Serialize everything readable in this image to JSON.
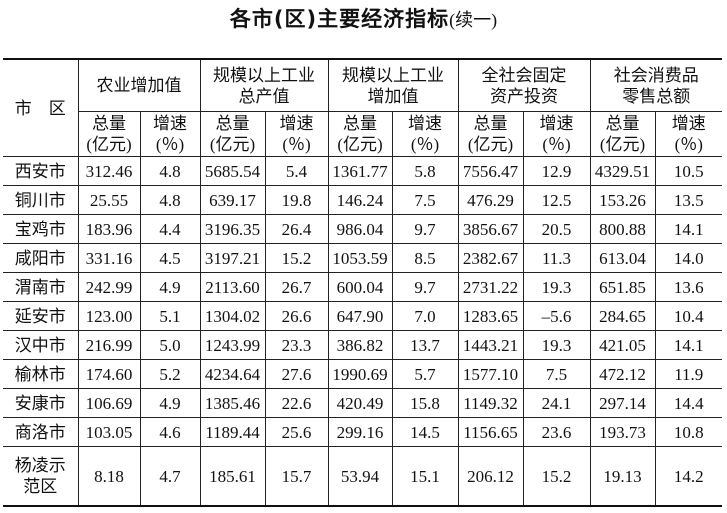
{
  "title": {
    "main": "各市(区)主要经济指标",
    "suffix": "(续一)"
  },
  "table": {
    "corner": "市　区",
    "groups": [
      [
        "农业增加值"
      ],
      [
        "规模以上工业",
        "总产值"
      ],
      [
        "规模以上工业",
        "增加值"
      ],
      [
        "全社会固定",
        "资产投资"
      ],
      [
        "社会消费品",
        "零售总额"
      ]
    ],
    "subheaders": [
      [
        "总量",
        "(亿元)"
      ],
      [
        "增速",
        "(％)"
      ],
      [
        "总量",
        "(亿元)"
      ],
      [
        "增速",
        "(％)"
      ],
      [
        "总量",
        "(亿元)"
      ],
      [
        "增速",
        "(％)"
      ],
      [
        "总量",
        "(亿元)"
      ],
      [
        "增速",
        "(％)"
      ],
      [
        "总量",
        "(亿元)"
      ],
      [
        "增速",
        "(％)"
      ]
    ],
    "rows": [
      {
        "name": [
          "西安市"
        ],
        "cells": [
          "312.46",
          "4.8",
          "5685.54",
          "5.4",
          "1361.77",
          "5.8",
          "7556.47",
          "12.9",
          "4329.51",
          "10.5"
        ]
      },
      {
        "name": [
          "铜川市"
        ],
        "cells": [
          "25.55",
          "4.8",
          "639.17",
          "19.8",
          "146.24",
          "7.5",
          "476.29",
          "12.5",
          "153.26",
          "13.5"
        ]
      },
      {
        "name": [
          "宝鸡市"
        ],
        "cells": [
          "183.96",
          "4.4",
          "3196.35",
          "26.4",
          "986.04",
          "9.7",
          "3856.67",
          "20.5",
          "800.88",
          "14.1"
        ]
      },
      {
        "name": [
          "咸阳市"
        ],
        "cells": [
          "331.16",
          "4.5",
          "3197.21",
          "15.2",
          "1053.59",
          "8.5",
          "2382.67",
          "11.3",
          "613.04",
          "14.0"
        ]
      },
      {
        "name": [
          "渭南市"
        ],
        "cells": [
          "242.99",
          "4.9",
          "2113.60",
          "26.7",
          "600.04",
          "9.7",
          "2731.22",
          "19.3",
          "651.85",
          "13.6"
        ]
      },
      {
        "name": [
          "延安市"
        ],
        "cells": [
          "123.00",
          "5.1",
          "1304.02",
          "26.6",
          "647.90",
          "7.0",
          "1283.65",
          "–5.6",
          "284.65",
          "10.4"
        ]
      },
      {
        "name": [
          "汉中市"
        ],
        "cells": [
          "216.99",
          "5.0",
          "1243.99",
          "23.3",
          "386.82",
          "13.7",
          "1443.21",
          "19.3",
          "421.05",
          "14.1"
        ]
      },
      {
        "name": [
          "榆林市"
        ],
        "cells": [
          "174.60",
          "5.2",
          "4234.64",
          "27.6",
          "1990.69",
          "5.7",
          "1577.10",
          "7.5",
          "472.12",
          "11.9"
        ]
      },
      {
        "name": [
          "安康市"
        ],
        "cells": [
          "106.69",
          "4.9",
          "1385.46",
          "22.6",
          "420.49",
          "15.8",
          "1149.32",
          "24.1",
          "297.14",
          "14.4"
        ]
      },
      {
        "name": [
          "商洛市"
        ],
        "cells": [
          "103.05",
          "4.6",
          "1189.44",
          "25.6",
          "299.16",
          "14.5",
          "1156.65",
          "23.6",
          "193.73",
          "10.8"
        ]
      },
      {
        "name": [
          "杨凌示",
          "范区"
        ],
        "cells": [
          "8.18",
          "4.7",
          "185.61",
          "15.7",
          "53.94",
          "15.1",
          "206.12",
          "15.2",
          "19.13",
          "14.2"
        ]
      }
    ]
  }
}
